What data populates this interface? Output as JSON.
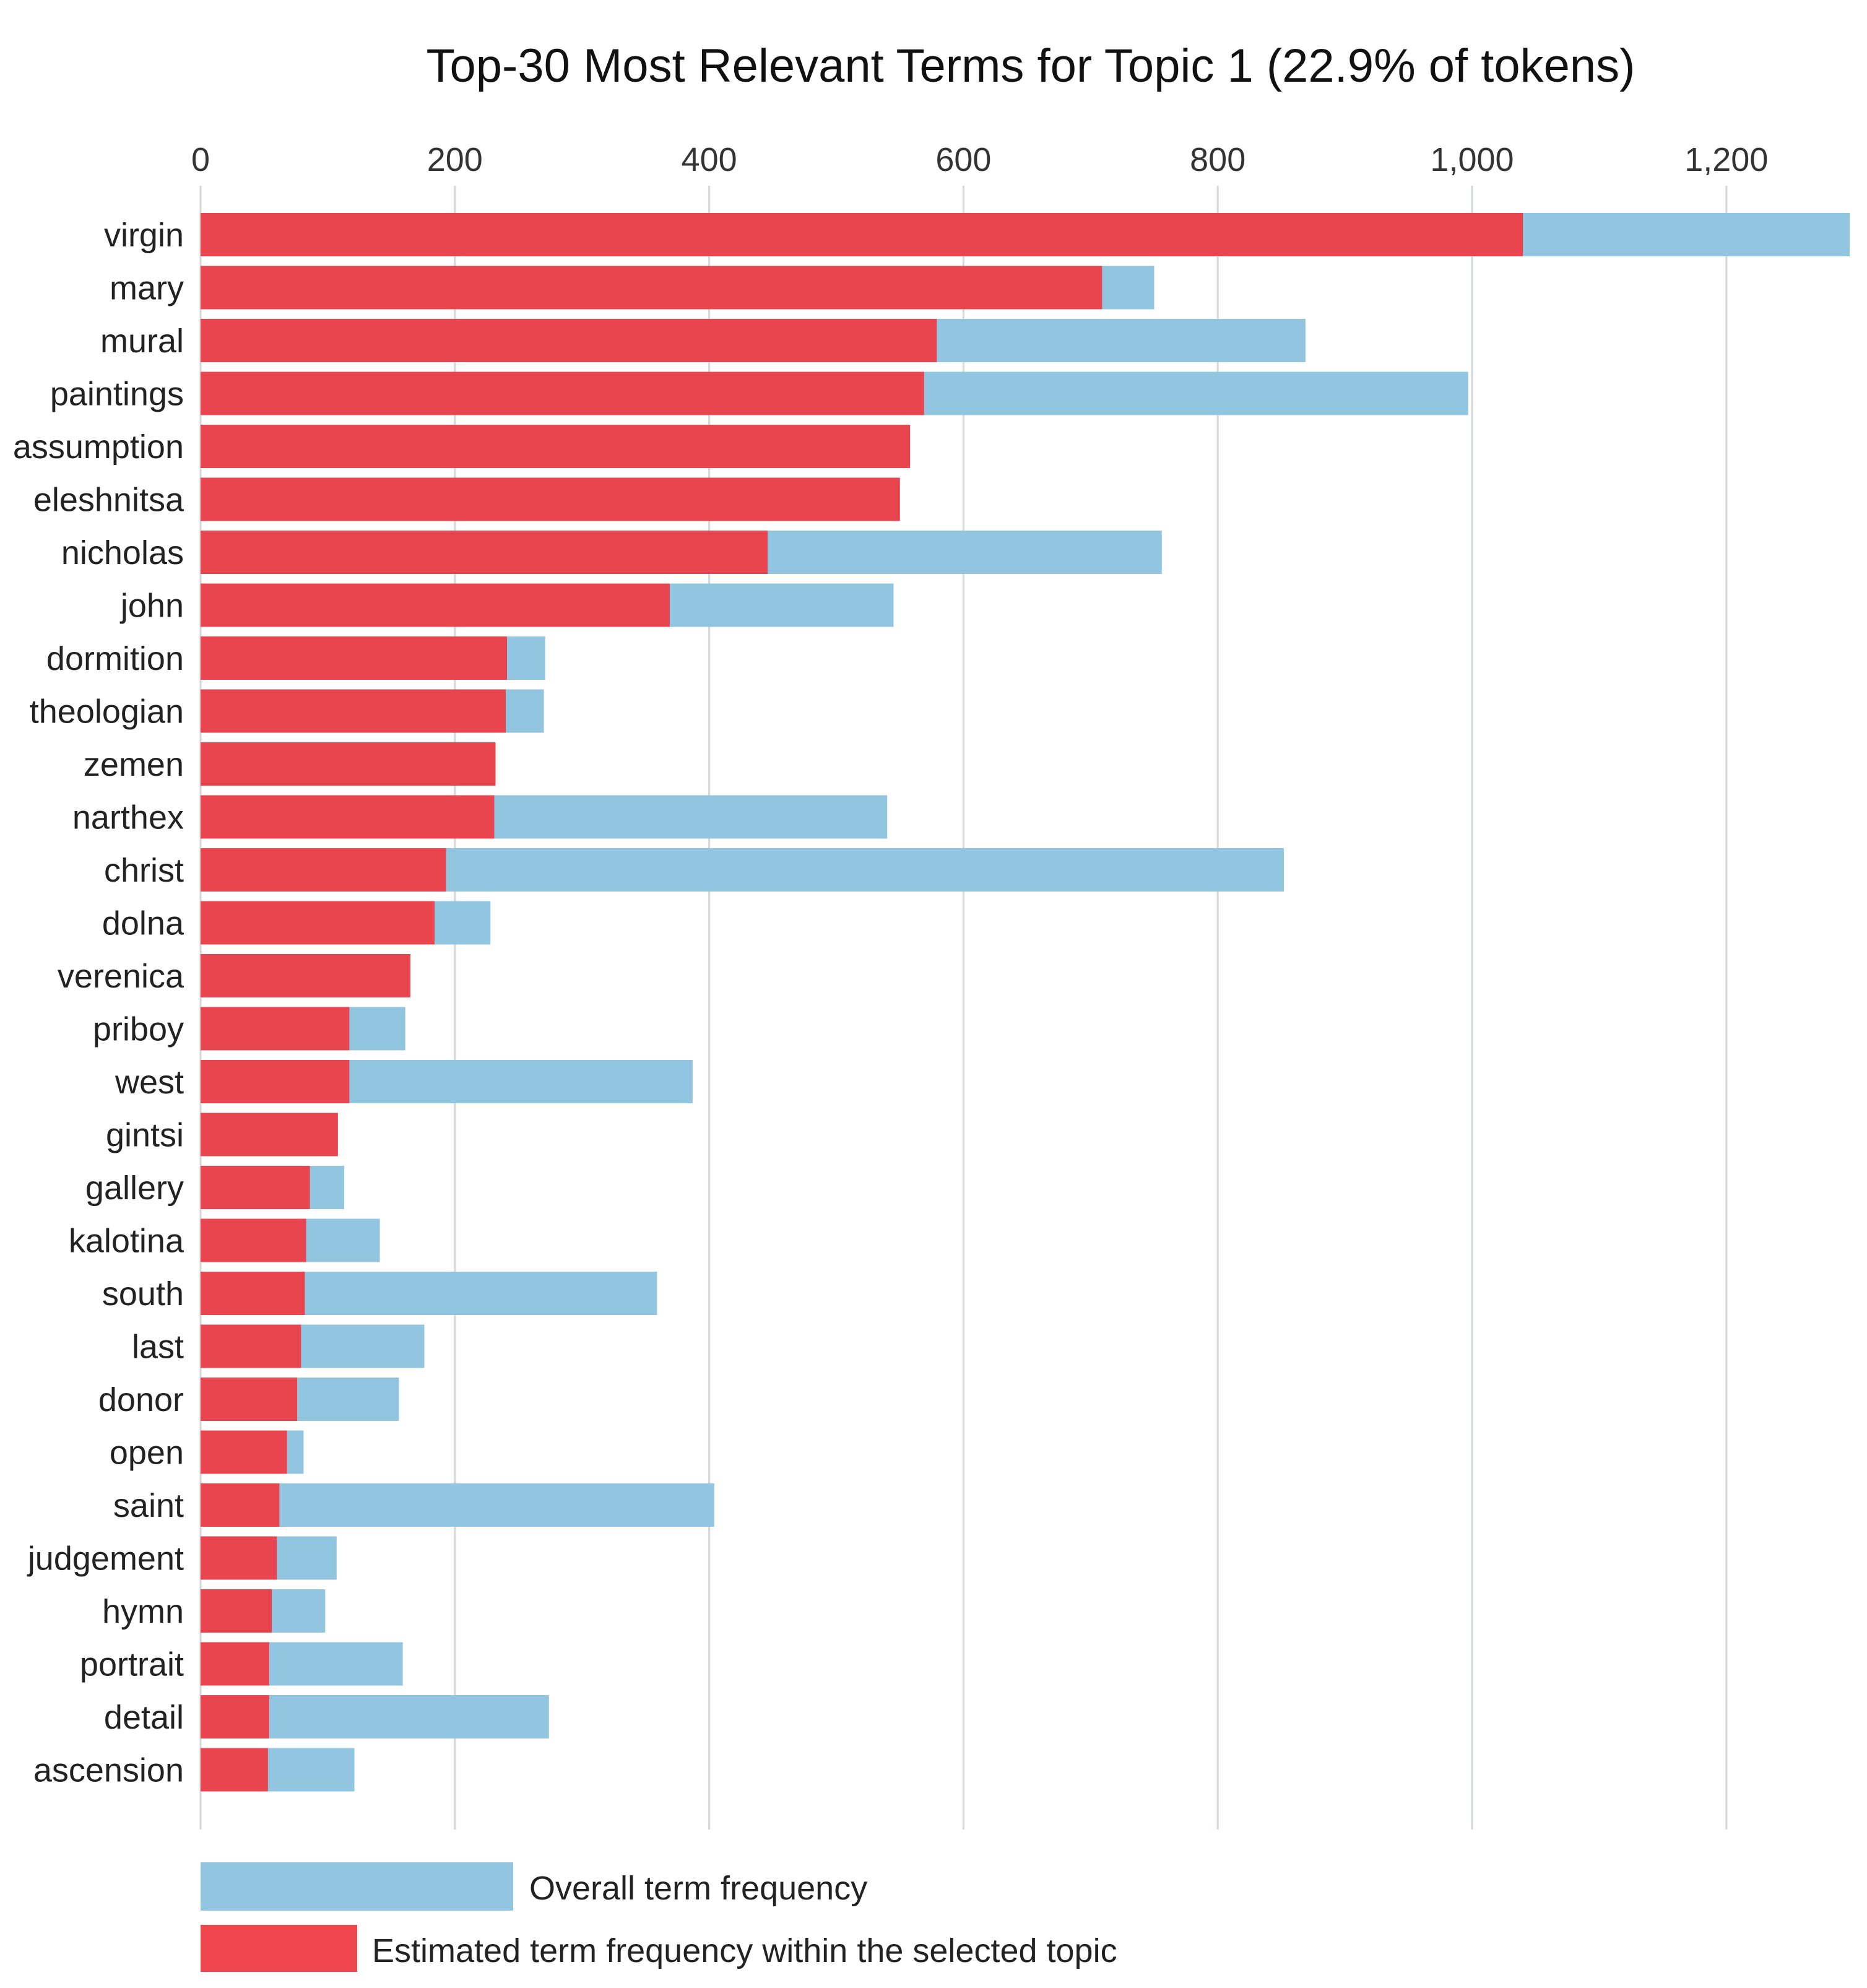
{
  "chart_data": {
    "type": "bar",
    "orientation": "horizontal",
    "title": "Top-30 Most Relevant Terms for Topic 1 (22.9% of tokens)",
    "xlabel": "",
    "ylabel": "",
    "xlim": [
      0,
      1300
    ],
    "x_ticks": [
      0,
      200,
      400,
      600,
      800,
      1000,
      1200
    ],
    "x_tick_labels": [
      "0",
      "200",
      "400",
      "600",
      "800",
      "1,000",
      "1,200"
    ],
    "grid": true,
    "categories": [
      "virgin",
      "mary",
      "mural",
      "paintings",
      "assumption",
      "eleshnitsa",
      "nicholas",
      "john",
      "dormition",
      "theologian",
      "zemen",
      "narthex",
      "christ",
      "dolna",
      "verenica",
      "priboy",
      "west",
      "gintsi",
      "gallery",
      "kalotina",
      "south",
      "last",
      "donor",
      "open",
      "saint",
      "judgement",
      "hymn",
      "portrait",
      "detail",
      "ascension"
    ],
    "series": [
      {
        "name": "Overall term frequency",
        "color": "#92c5e0",
        "values": [
          1297,
          750,
          869,
          997,
          558,
          550,
          756,
          545,
          271,
          270,
          232,
          540,
          852,
          228,
          165,
          161,
          387,
          108,
          113,
          141,
          359,
          176,
          156,
          81,
          404,
          107,
          98,
          159,
          274,
          121
        ]
      },
      {
        "name": "Estimated term frequency within the selected topic",
        "color": "#e8454f",
        "values": [
          1040,
          709,
          579,
          569,
          558,
          550,
          446,
          369,
          241,
          240,
          232,
          231,
          193,
          184,
          165,
          117,
          117,
          108,
          86,
          83,
          82,
          79,
          76,
          68,
          62,
          60,
          56,
          54,
          54,
          53
        ]
      }
    ],
    "legend": {
      "placement": "bottom-left",
      "items": [
        "Overall term frequency",
        "Estimated term frequency within the selected topic"
      ]
    }
  }
}
